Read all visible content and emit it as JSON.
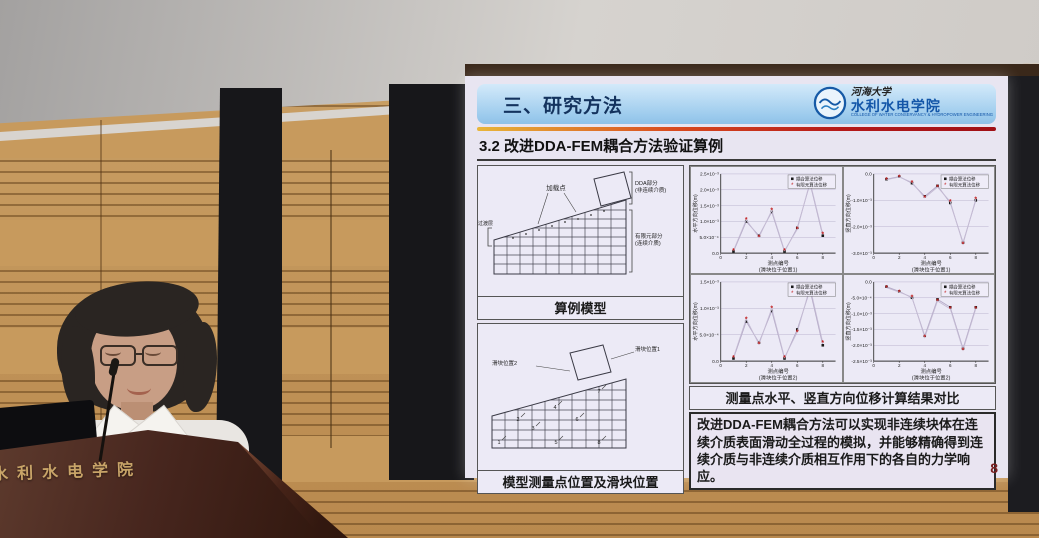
{
  "scene": {
    "podium_label": "水利水电学院"
  },
  "slide": {
    "header": {
      "title": "三、研究方法"
    },
    "logo": {
      "university": "河海大学",
      "college": "水利水电学院",
      "college_en": "COLLEGE OF WATER CONSERVANCY & HYDROPOWER ENGINEERING"
    },
    "subtitle": "3.2 改进DDA-FEM耦合方法验证算例",
    "model_diagram": {
      "loading_point": "加载点",
      "transition_layer": "过渡层",
      "dda_part_line1": "DDA部分",
      "dda_part_line2": "(非连续介质)",
      "fem_part_line1": "有限元部分",
      "fem_part_line2": "(连续介质)",
      "caption": "算例模型"
    },
    "points_diagram": {
      "slider_pos1": "滑块位置1",
      "slider_pos2": "滑块位置2",
      "point_numbers": [
        "1",
        "2",
        "3",
        "4",
        "5",
        "6",
        "7",
        "8"
      ],
      "caption": "模型测量点位置及滑块位置"
    },
    "charts_caption": "测量点水平、竖直方向位移计算结果对比",
    "conclusion": "改进DDA-FEM耦合方法可以实现非连续块体在连续介质表面滑动全过程的模拟，并能够精确得到连续介质与非连续介质相互作用下的各自的力学响应。",
    "page_number": "8"
  },
  "chart_data": [
    {
      "type": "line",
      "x": [
        1,
        2,
        3,
        4,
        5,
        6,
        7,
        8
      ],
      "series": [
        {
          "name": "耦合算法位移",
          "marker": "square",
          "values": [
            5e-05,
            0.001,
            0.00055,
            0.0013,
            5e-05,
            0.0008,
            0.0022,
            0.00055
          ]
        },
        {
          "name": "有限元算法位移",
          "marker": "star",
          "values": [
            8e-05,
            0.00105,
            0.0005,
            0.00135,
            8e-05,
            0.00075,
            0.00225,
            0.0006
          ]
        }
      ],
      "legend": [
        "耦合算法位移",
        "有限元算法位移"
      ],
      "legend_position": "top-right",
      "grid": true,
      "xlabel": "测点编号",
      "sublabel": "(滑块位于位置1)",
      "ylabel": "水平方向位移(m)",
      "xlim": [
        0,
        9
      ],
      "ylim": [
        0,
        0.0025
      ],
      "yticks": [
        {
          "v": 0.0025,
          "label": "2.5×10⁻³"
        },
        {
          "v": 0.002,
          "label": "2.0×10⁻³"
        },
        {
          "v": 0.0015,
          "label": "1.5×10⁻³"
        },
        {
          "v": 0.001,
          "label": "1.0×10⁻³"
        },
        {
          "v": 0.0005,
          "label": "5.0×10⁻⁴"
        },
        {
          "v": 0,
          "label": "0.0"
        }
      ]
    },
    {
      "type": "line",
      "x": [
        1,
        2,
        3,
        4,
        5,
        6,
        7,
        8
      ],
      "series": [
        {
          "name": "耦合算法位移",
          "marker": "square",
          "values": [
            -0.0002,
            -0.0001,
            -0.00035,
            -0.00085,
            -0.00045,
            -0.0011,
            -0.0026,
            -0.001
          ]
        },
        {
          "name": "有限元算法位移",
          "marker": "star",
          "values": [
            -0.00022,
            -0.00012,
            -0.00032,
            -0.0009,
            -0.0005,
            -0.00105,
            -0.00265,
            -0.00095
          ]
        }
      ],
      "legend": [
        "耦合算法位移",
        "有限元算法位移"
      ],
      "legend_position": "top-right",
      "grid": true,
      "xlabel": "测点编号",
      "sublabel": "(滑块位于位置1)",
      "ylabel": "竖直方向位移(m)",
      "xlim": [
        0,
        9
      ],
      "ylim": [
        -0.003,
        0
      ],
      "yticks": [
        {
          "v": 0,
          "label": "0.0"
        },
        {
          "v": -0.001,
          "label": "-1.0×10⁻³"
        },
        {
          "v": -0.002,
          "label": "-2.0×10⁻³"
        },
        {
          "v": -0.003,
          "label": "-3.0×10⁻³"
        }
      ]
    },
    {
      "type": "line",
      "x": [
        1,
        2,
        3,
        4,
        5,
        6,
        7,
        8
      ],
      "series": [
        {
          "name": "耦合算法位移",
          "marker": "square",
          "values": [
            5e-05,
            0.00075,
            0.00035,
            0.00095,
            5e-05,
            0.0006,
            0.00135,
            0.0003
          ]
        },
        {
          "name": "有限元算法位移",
          "marker": "star",
          "values": [
            7e-05,
            0.0008,
            0.00032,
            0.001,
            7e-05,
            0.00055,
            0.0014,
            0.00035
          ]
        }
      ],
      "legend": [
        "耦合算法位移",
        "有限元算法位移"
      ],
      "legend_position": "top-right",
      "grid": true,
      "xlabel": "测点编号",
      "sublabel": "(滑块位于位置2)",
      "ylabel": "水平方向位移(m)",
      "xlim": [
        0,
        9
      ],
      "ylim": [
        0,
        0.0015
      ],
      "yticks": [
        {
          "v": 0.0015,
          "label": "1.5×10⁻³"
        },
        {
          "v": 0.001,
          "label": "1.0×10⁻³"
        },
        {
          "v": 0.0005,
          "label": "5.0×10⁻⁴"
        },
        {
          "v": 0,
          "label": "0.0"
        }
      ]
    },
    {
      "type": "line",
      "x": [
        1,
        2,
        3,
        4,
        5,
        6,
        7,
        8
      ],
      "series": [
        {
          "name": "耦合算法位移",
          "marker": "square",
          "values": [
            -0.00015,
            -0.0003,
            -0.0005,
            -0.0017,
            -0.00055,
            -0.0008,
            -0.0021,
            -0.0008
          ]
        },
        {
          "name": "有限元算法位移",
          "marker": "star",
          "values": [
            -0.00018,
            -0.00032,
            -0.00048,
            -0.00175,
            -0.0006,
            -0.00085,
            -0.00215,
            -0.00085
          ]
        }
      ],
      "legend": [
        "耦合算法位移",
        "有限元算法位移"
      ],
      "legend_position": "top-right",
      "grid": true,
      "xlabel": "测点编号",
      "sublabel": "(滑块位于位置2)",
      "ylabel": "竖直方向位移(m)",
      "xlim": [
        0,
        9
      ],
      "ylim": [
        -0.0025,
        0
      ],
      "yticks": [
        {
          "v": 0,
          "label": "0.0"
        },
        {
          "v": -0.0005,
          "label": "-5.0×10⁻⁴"
        },
        {
          "v": -0.001,
          "label": "-1.0×10⁻³"
        },
        {
          "v": -0.0015,
          "label": "-1.5×10⁻³"
        },
        {
          "v": -0.002,
          "label": "-2.0×10⁻³"
        },
        {
          "v": -0.0025,
          "label": "-2.5×10⁻³"
        }
      ]
    }
  ]
}
